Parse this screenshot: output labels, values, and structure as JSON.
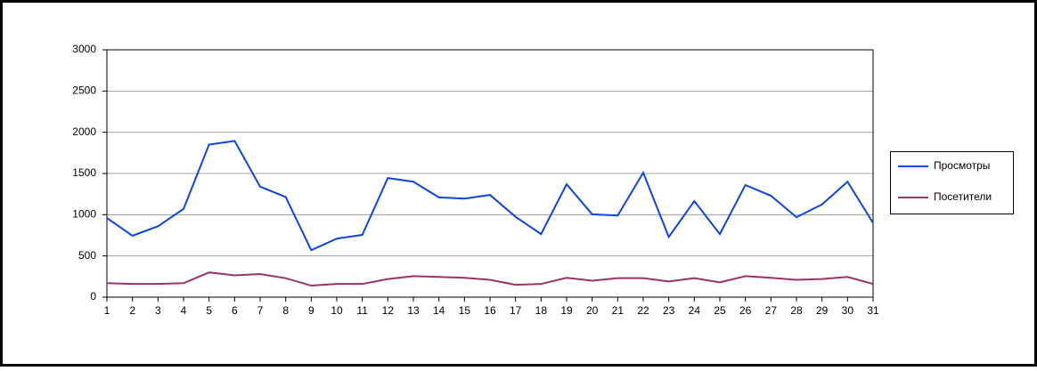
{
  "chart_data": {
    "type": "line",
    "categories": [
      1,
      2,
      3,
      4,
      5,
      6,
      7,
      8,
      9,
      10,
      11,
      12,
      13,
      14,
      15,
      16,
      17,
      18,
      19,
      20,
      21,
      22,
      23,
      24,
      25,
      26,
      27,
      28,
      29,
      30,
      31
    ],
    "series": [
      {
        "name": "Просмотры",
        "color": "#0a46e6",
        "values": [
          960,
          745,
          860,
          1070,
          1850,
          1895,
          1340,
          1215,
          570,
          710,
          755,
          1445,
          1400,
          1210,
          1195,
          1240,
          975,
          765,
          1370,
          1005,
          990,
          1510,
          730,
          1165,
          765,
          1360,
          1230,
          970,
          1125,
          1400,
          900
        ]
      },
      {
        "name": "Посетители",
        "color": "#993366",
        "values": [
          170,
          160,
          160,
          170,
          300,
          265,
          280,
          230,
          140,
          160,
          160,
          220,
          255,
          245,
          235,
          210,
          150,
          160,
          235,
          200,
          230,
          230,
          190,
          230,
          180,
          255,
          235,
          210,
          220,
          245,
          160
        ]
      }
    ],
    "ylim": [
      0,
      3000
    ],
    "yticks": [
      0,
      500,
      1000,
      1500,
      2000,
      2500,
      3000
    ],
    "grid": true,
    "legend": "right"
  }
}
